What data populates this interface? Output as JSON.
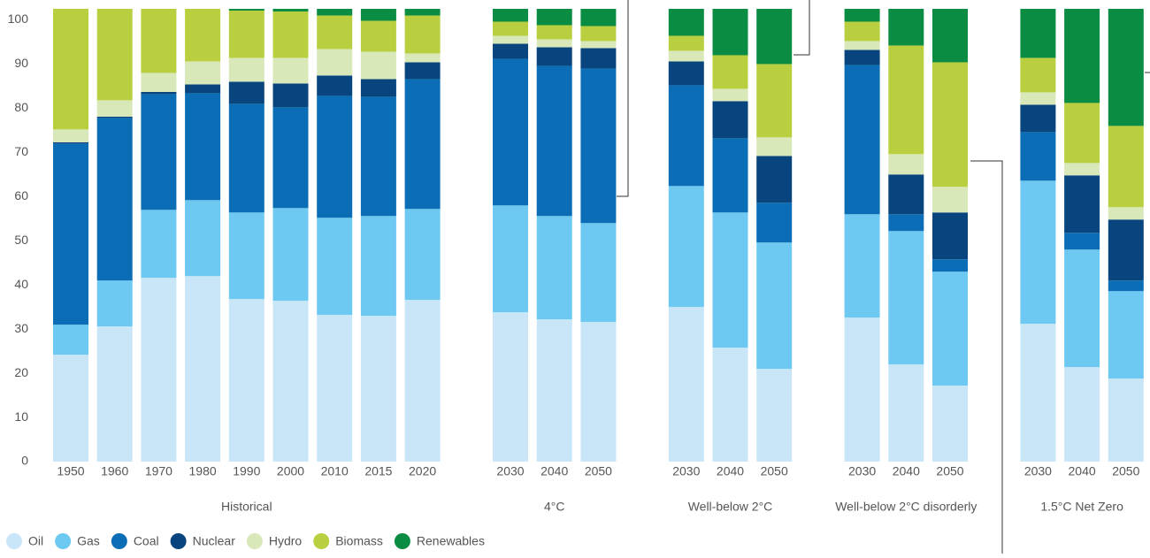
{
  "chart_data": {
    "type": "bar",
    "stacked": true,
    "groups": [
      {
        "name": "Historical",
        "categories": [
          "1950",
          "1960",
          "1970",
          "1980",
          "1990",
          "2000",
          "2010",
          "2015",
          "2020"
        ]
      },
      {
        "name": "4°C",
        "categories": [
          "2030",
          "2040",
          "2050"
        ]
      },
      {
        "name": "Well-below 2°C",
        "categories": [
          "2030",
          "2040",
          "2050"
        ]
      },
      {
        "name": "Well-below 2°C disorderly",
        "categories": [
          "2030",
          "2040",
          "2050"
        ]
      },
      {
        "name": "1.5°C Net Zero",
        "categories": [
          "2030",
          "2040",
          "2050"
        ]
      }
    ],
    "series": [
      {
        "name": "Oil",
        "color": "#c9e6f8",
        "values": [
          24.2,
          30.6,
          41.6,
          42,
          36.8,
          36.4,
          33.2,
          33,
          36.6,
          33.8,
          32.2,
          31.6,
          35,
          25.8,
          21,
          32.6,
          22,
          17.2,
          31.2,
          21.4,
          18.8
        ]
      },
      {
        "name": "Gas",
        "color": "#6dc8f2",
        "values": [
          6.8,
          10.4,
          15.4,
          17.2,
          19.6,
          21,
          22,
          22.6,
          20.6,
          24.2,
          23.4,
          22.4,
          27.4,
          30.6,
          28.6,
          23.4,
          30.2,
          25.8,
          32.4,
          26.6,
          19.8
        ]
      },
      {
        "name": "Coal",
        "color": "#0a6db5",
        "values": [
          41,
          36.8,
          26.2,
          24.2,
          24.6,
          22.8,
          27.6,
          27,
          29.4,
          33.2,
          34,
          35,
          22.8,
          16.8,
          9,
          33.8,
          3.8,
          2.8,
          11,
          3.8,
          2.4
        ]
      },
      {
        "name": "Nuclear",
        "color": "#08457e",
        "values": [
          0.3,
          0.3,
          0.5,
          2,
          5,
          5.4,
          4.6,
          4,
          3.8,
          3.4,
          4.2,
          4.6,
          5.4,
          8.4,
          10.6,
          3.4,
          9,
          10.6,
          6.2,
          13,
          13.8
        ]
      },
      {
        "name": "Hydro",
        "color": "#d9e8b8",
        "values": [
          2.9,
          3.7,
          4.3,
          5.2,
          5.4,
          5.8,
          6,
          6.2,
          2,
          1.8,
          1.8,
          1.6,
          2.4,
          2.8,
          4.2,
          2,
          4.6,
          5.8,
          2.8,
          2.8,
          2.8
        ]
      },
      {
        "name": "Biomass",
        "color": "#b9cf3f",
        "values": [
          27.3,
          20.7,
          14.5,
          11.9,
          10.7,
          10.5,
          7.6,
          7,
          8.6,
          3.2,
          3.2,
          3.4,
          3.4,
          7.6,
          16.6,
          4.4,
          24.6,
          28.2,
          7.8,
          13.6,
          18.4
        ]
      },
      {
        "name": "Renewables",
        "color": "#0a8c43",
        "values": [
          0,
          0,
          0,
          0,
          0.4,
          0.6,
          1.5,
          2.7,
          1.5,
          2.9,
          3.7,
          3.9,
          6.1,
          10.5,
          12.5,
          2.9,
          8.3,
          12.1,
          11.1,
          21.3,
          26.5
        ]
      }
    ],
    "ylim": [
      0,
      102.5
    ],
    "yticks": [
      0,
      10,
      20,
      30,
      40,
      50,
      60,
      70,
      80,
      90,
      100
    ],
    "legend": "bottom-left"
  }
}
